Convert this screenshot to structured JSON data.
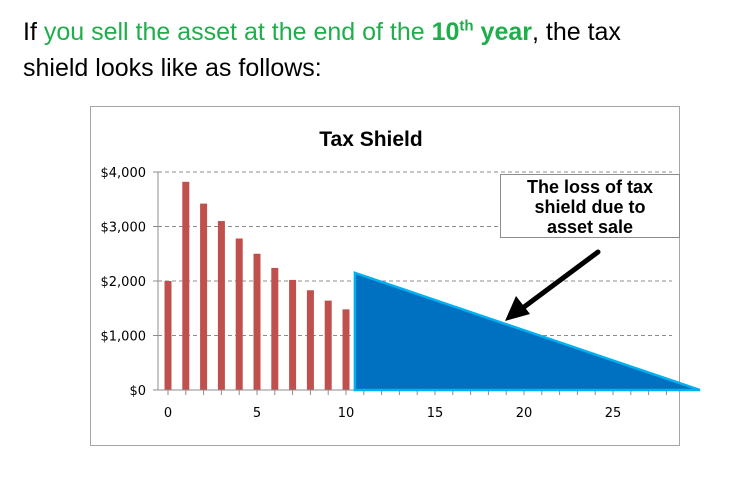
{
  "heading": {
    "part1": "If ",
    "part2": "you sell the asset at the end of the ",
    "part3": "10",
    "part4": "th",
    "part5": " year",
    "part6": ", the tax",
    "line2": "shield looks like as follows:"
  },
  "callout": {
    "line1": "The loss of tax",
    "line2": "shield due to",
    "line3": "asset sale"
  },
  "colors": {
    "accent_green": "#1fae4c",
    "bar": "#c0504d",
    "loss_area": "#0070c0",
    "loss_area_edge": "#00b0f0"
  },
  "chart_data": {
    "type": "bar",
    "title": "Tax Shield",
    "xlabel": "",
    "ylabel": "",
    "x": [
      0,
      1,
      2,
      3,
      4,
      5,
      6,
      7,
      8,
      9,
      10
    ],
    "values": [
      2000,
      3820,
      3420,
      3100,
      2780,
      2500,
      2240,
      2020,
      1830,
      1640,
      1480
    ],
    "ylim": [
      0,
      4000
    ],
    "xlim": [
      0,
      30
    ],
    "y_ticks": [
      0,
      1000,
      2000,
      3000,
      4000
    ],
    "y_tick_labels": [
      "$0",
      "$1,000",
      "$2,000",
      "$3,000",
      "$4,000"
    ],
    "x_ticks": [
      0,
      5,
      10,
      15,
      20,
      25
    ],
    "x_tick_labels": [
      "0",
      "5",
      "10",
      "15",
      "20",
      "25"
    ],
    "grid": true,
    "lost_shield_area": {
      "x_start": 10.5,
      "y_start": 2150,
      "x_end": 30,
      "y_end": 0
    }
  }
}
